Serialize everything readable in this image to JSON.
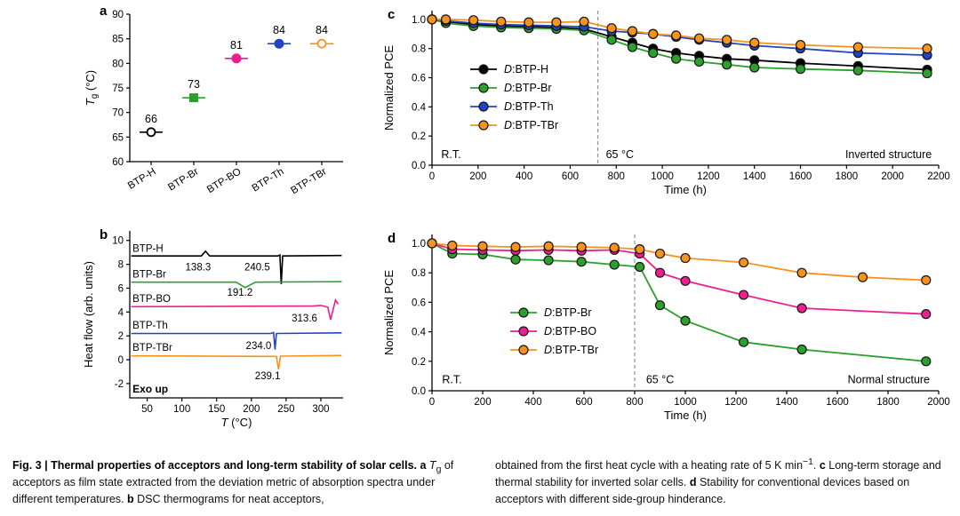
{
  "figure": {
    "caption": {
      "left": [
        {
          "t": "Fig. 3 | Thermal properties of acceptors and long-term stability of solar cells.",
          "b": true
        },
        {
          "t": " "
        },
        {
          "t": "a",
          "b": true
        },
        {
          "t": " "
        },
        {
          "t": "T",
          "i": true
        },
        {
          "t": "g",
          "sub": true
        },
        {
          "t": " of acceptors as film state extracted from the deviation metric of absorption spectra under different temperatures. "
        },
        {
          "t": "b",
          "b": true
        },
        {
          "t": " DSC thermograms for neat acceptors,"
        }
      ],
      "right": [
        {
          "t": "obtained from the first heat cycle with a heating rate of 5 K min"
        },
        {
          "t": "−1",
          "sup": true
        },
        {
          "t": ". "
        },
        {
          "t": "c",
          "b": true
        },
        {
          "t": " Long-term storage and thermal stability for inverted solar cells. "
        },
        {
          "t": "d",
          "b": true
        },
        {
          "t": " Stability for conventional devices based on acceptors with different side-group hinderance."
        }
      ]
    }
  },
  "colors": {
    "black": "#000000",
    "green": "#2ca02c",
    "magenta": "#ed1e8f",
    "blue": "#2144c4",
    "orange": "#f6921e",
    "dashed_line": "#909090"
  },
  "chart_data": [
    {
      "id": "panel-a",
      "panel_label": "a",
      "type": "scatter",
      "ylabel": [
        {
          "t": "T",
          "i": true
        },
        {
          "t": "g",
          "sub": true
        },
        {
          "t": " (°C)"
        }
      ],
      "ylim": [
        60,
        90
      ],
      "yticks": [
        60,
        65,
        70,
        75,
        80,
        85,
        90
      ],
      "categories": [
        "BTP-H",
        "BTP-Br",
        "BTP-BO",
        "BTP-Th",
        "BTP-TBr"
      ],
      "values": [
        66,
        73,
        81,
        84,
        84
      ],
      "labels": [
        "66",
        "73",
        "81",
        "84",
        "84"
      ],
      "markers": [
        "open-circle",
        "filled-square",
        "filled-circle",
        "filled-circle",
        "open-circle"
      ],
      "colors": [
        "#000000",
        "#2ca02c",
        "#ed1e8f",
        "#2144c4",
        "#f6921e"
      ]
    },
    {
      "id": "panel-b",
      "panel_label": "b",
      "type": "line",
      "xlabel": [
        {
          "t": "T",
          "i": true
        },
        {
          "t": " (°C)"
        }
      ],
      "ylabel": "Heat flow (arb. units)",
      "xlim": [
        25,
        332
      ],
      "xticks": [
        50,
        100,
        150,
        200,
        250,
        300
      ],
      "ylim": [
        -3.2,
        10.8
      ],
      "yticks": [
        -2,
        0,
        2,
        4,
        6,
        8,
        10
      ],
      "series": [
        {
          "name": "BTP-H",
          "color": "#000000",
          "points": [
            [
              27,
              8.7
            ],
            [
              128,
              8.7
            ],
            [
              134,
              9.1
            ],
            [
              140,
              8.7
            ],
            [
              238,
              8.7
            ],
            [
              241,
              8.78
            ],
            [
              243,
              6.35
            ],
            [
              245,
              8.7
            ],
            [
              330,
              8.74
            ]
          ]
        },
        {
          "name": "BTP-Br",
          "color": "#2ca02c",
          "points": [
            [
              27,
              6.5
            ],
            [
              178,
              6.5
            ],
            [
              191,
              6.05
            ],
            [
              206,
              6.5
            ],
            [
              330,
              6.55
            ]
          ]
        },
        {
          "name": "BTP-BO",
          "color": "#ed1e8f",
          "points": [
            [
              27,
              4.45
            ],
            [
              288,
              4.5
            ],
            [
              300,
              4.55
            ],
            [
              310,
              4.4
            ],
            [
              314,
              3.35
            ],
            [
              318,
              4.3
            ],
            [
              321,
              5.0
            ],
            [
              325,
              4.65
            ]
          ]
        },
        {
          "name": "BTP-Th",
          "color": "#2144c4",
          "points": [
            [
              27,
              2.2
            ],
            [
              228,
              2.2
            ],
            [
              232,
              2.27
            ],
            [
              234,
              0.85
            ],
            [
              236,
              2.2
            ],
            [
              330,
              2.25
            ]
          ]
        },
        {
          "name": "BTP-TBr",
          "color": "#f6921e",
          "points": [
            [
              27,
              0.32
            ],
            [
              230,
              0.28
            ],
            [
              236,
              0.28
            ],
            [
              239,
              -0.8
            ],
            [
              242,
              0.3
            ],
            [
              330,
              0.35
            ]
          ]
        }
      ],
      "annotations": [
        {
          "text": "BTP-H",
          "x": 29,
          "y": 9.05,
          "size": 11.5
        },
        {
          "text": "138.3",
          "x": 105,
          "y": 7.5,
          "size": 11.5
        },
        {
          "text": "240.5",
          "x": 190,
          "y": 7.5,
          "size": 11.5
        },
        {
          "text": "BTP-Br",
          "x": 29,
          "y": 6.9,
          "size": 11.5
        },
        {
          "text": "191.2",
          "x": 165,
          "y": 5.35,
          "size": 11.5
        },
        {
          "text": "BTP-BO",
          "x": 29,
          "y": 4.85,
          "size": 11.5
        },
        {
          "text": "313.6",
          "x": 258,
          "y": 3.2,
          "size": 11.5
        },
        {
          "text": "BTP-Th",
          "x": 29,
          "y": 2.6,
          "size": 11.5
        },
        {
          "text": "234.0",
          "x": 192,
          "y": 0.9,
          "size": 11.5
        },
        {
          "text": "BTP-TBr",
          "x": 29,
          "y": 0.75,
          "size": 11.5
        },
        {
          "text": "239.1",
          "x": 205,
          "y": -1.65,
          "size": 11.5
        },
        {
          "text": "Exo up",
          "x": 29,
          "y": -2.75,
          "bold": true,
          "size": 12
        }
      ]
    },
    {
      "id": "panel-c",
      "panel_label": "c",
      "type": "line",
      "xlabel": "Time (h)",
      "ylabel": "Normalized PCE",
      "xlim": [
        0,
        2200
      ],
      "xticks": [
        0,
        200,
        400,
        600,
        800,
        1000,
        1200,
        1400,
        1600,
        1800,
        2000,
        2200
      ],
      "ylim": [
        0,
        1.06
      ],
      "yticks": [
        0,
        0.2,
        0.4,
        0.6,
        0.8,
        1.0
      ],
      "ytick_labels": [
        "0.0",
        "0.2",
        "0.4",
        "0.6",
        "0.8",
        "1.0"
      ],
      "vline": {
        "x": 720
      },
      "legend": true,
      "series": [
        {
          "name": "D:BTP-H",
          "label": [
            {
              "t": "D",
              "i": true
            },
            {
              "t": ":BTP-H"
            }
          ],
          "color": "#000000",
          "x": [
            0,
            60,
            180,
            300,
            420,
            540,
            660,
            780,
            870,
            960,
            1060,
            1160,
            1280,
            1400,
            1600,
            1850,
            2150
          ],
          "y": [
            1.0,
            0.985,
            0.965,
            0.955,
            0.95,
            0.945,
            0.935,
            0.88,
            0.84,
            0.8,
            0.77,
            0.75,
            0.73,
            0.72,
            0.7,
            0.68,
            0.655
          ]
        },
        {
          "name": "D:BTP-Br",
          "label": [
            {
              "t": "D",
              "i": true
            },
            {
              "t": ":BTP-Br"
            }
          ],
          "color": "#2ca02c",
          "x": [
            0,
            60,
            180,
            300,
            420,
            540,
            660,
            780,
            870,
            960,
            1060,
            1160,
            1280,
            1400,
            1600,
            1850,
            2150
          ],
          "y": [
            1.0,
            0.975,
            0.955,
            0.945,
            0.94,
            0.935,
            0.925,
            0.86,
            0.81,
            0.77,
            0.73,
            0.71,
            0.69,
            0.67,
            0.66,
            0.65,
            0.63
          ]
        },
        {
          "name": "D:BTP-Th",
          "label": [
            {
              "t": "D",
              "i": true
            },
            {
              "t": ":BTP-Th"
            }
          ],
          "color": "#2144c4",
          "x": [
            0,
            60,
            180,
            300,
            420,
            540,
            660,
            780,
            870,
            960,
            1060,
            1160,
            1280,
            1400,
            1600,
            1850,
            2150
          ],
          "y": [
            1.0,
            0.99,
            0.975,
            0.965,
            0.96,
            0.955,
            0.95,
            0.92,
            0.91,
            0.9,
            0.88,
            0.86,
            0.84,
            0.82,
            0.8,
            0.77,
            0.755
          ]
        },
        {
          "name": "D:BTP-TBr",
          "label": [
            {
              "t": "D",
              "i": true
            },
            {
              "t": ":BTP-TBr"
            }
          ],
          "color": "#f6921e",
          "x": [
            0,
            60,
            180,
            300,
            420,
            540,
            660,
            780,
            870,
            960,
            1060,
            1160,
            1280,
            1400,
            1600,
            1850,
            2150
          ],
          "y": [
            1.0,
            1.0,
            0.995,
            0.985,
            0.98,
            0.98,
            0.985,
            0.94,
            0.92,
            0.9,
            0.89,
            0.87,
            0.86,
            0.84,
            0.825,
            0.81,
            0.8
          ]
        }
      ],
      "annotations": [
        {
          "text": "R.T.",
          "x": 40,
          "y": 0.05,
          "size": 12.5
        },
        {
          "text": "65 °C",
          "x": 755,
          "y": 0.05,
          "size": 12.5
        },
        {
          "text": "Inverted structure",
          "x": 2170,
          "y": 0.05,
          "anchor": "end",
          "size": 12.5
        }
      ]
    },
    {
      "id": "panel-d",
      "panel_label": "d",
      "type": "line",
      "xlabel": "Time (h)",
      "ylabel": "Normalized PCE",
      "xlim": [
        0,
        2000
      ],
      "xticks": [
        0,
        200,
        400,
        600,
        800,
        1000,
        1200,
        1400,
        1600,
        1800,
        2000
      ],
      "ylim": [
        0,
        1.06
      ],
      "yticks": [
        0,
        0.2,
        0.4,
        0.6,
        0.8,
        1.0
      ],
      "ytick_labels": [
        "0.0",
        "0.2",
        "0.4",
        "0.6",
        "0.8",
        "1.0"
      ],
      "vline": {
        "x": 800
      },
      "legend": true,
      "series": [
        {
          "name": "D:BTP-Br",
          "label": [
            {
              "t": "D",
              "i": true
            },
            {
              "t": ":BTP-Br"
            }
          ],
          "color": "#2ca02c",
          "x": [
            0,
            80,
            200,
            330,
            460,
            590,
            720,
            820,
            900,
            1000,
            1230,
            1460,
            1950
          ],
          "y": [
            1.0,
            0.93,
            0.925,
            0.89,
            0.885,
            0.875,
            0.855,
            0.84,
            0.58,
            0.475,
            0.33,
            0.28,
            0.2
          ]
        },
        {
          "name": "D:BTP-BO",
          "label": [
            {
              "t": "D",
              "i": true
            },
            {
              "t": ":BTP-BO"
            }
          ],
          "color": "#ed1e8f",
          "x": [
            0,
            80,
            200,
            330,
            460,
            590,
            720,
            820,
            900,
            1000,
            1230,
            1460,
            1950
          ],
          "y": [
            1.0,
            0.96,
            0.955,
            0.95,
            0.955,
            0.95,
            0.955,
            0.93,
            0.8,
            0.745,
            0.65,
            0.56,
            0.52
          ]
        },
        {
          "name": "D:BTP-TBr",
          "label": [
            {
              "t": "D",
              "i": true
            },
            {
              "t": ":BTP-TBr"
            }
          ],
          "color": "#f6921e",
          "x": [
            0,
            80,
            200,
            330,
            460,
            590,
            720,
            820,
            900,
            1000,
            1230,
            1460,
            1700,
            1950
          ],
          "y": [
            1.0,
            0.985,
            0.98,
            0.975,
            0.98,
            0.975,
            0.97,
            0.96,
            0.93,
            0.9,
            0.87,
            0.8,
            0.77,
            0.75
          ]
        }
      ],
      "annotations": [
        {
          "text": "R.T.",
          "x": 40,
          "y": 0.05,
          "size": 12.5
        },
        {
          "text": "65 °C",
          "x": 845,
          "y": 0.05,
          "size": 12.5
        },
        {
          "text": "Normal structure",
          "x": 1965,
          "y": 0.05,
          "anchor": "end",
          "size": 12.5
        }
      ]
    }
  ]
}
